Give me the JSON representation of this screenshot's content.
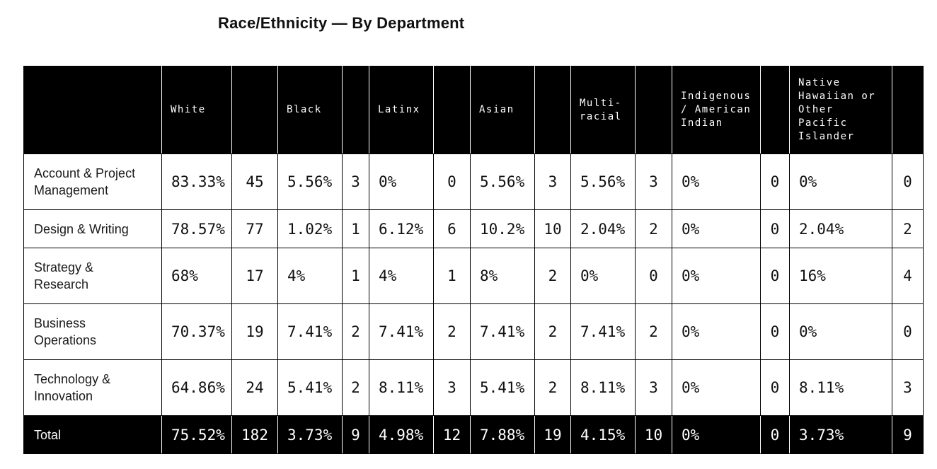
{
  "page_title": "Race/Ethnicity — By Department",
  "colors": {
    "header_bg": "#000000",
    "header_text": "#ffffff",
    "body_bg": "#ffffff",
    "body_text": "#111111",
    "grid_line": "#000000",
    "header_divider": "#ffffff"
  },
  "chart_data": {
    "type": "table",
    "title": "Race/Ethnicity — By Department",
    "column_groups": [
      "White",
      "Black",
      "Latinx",
      "Asian",
      "Multi-\nracial",
      "Indigenous\n/ American\nIndian",
      "Native\nHawaiian or\nOther\nPacific\nIslander"
    ],
    "columns_per_group": [
      "percent",
      "count"
    ],
    "rows": [
      {
        "label": "Account & Project\nManagement",
        "cells": [
          "83.33%",
          "45",
          "5.56%",
          "3",
          "0%",
          "0",
          "5.56%",
          "3",
          "5.56%",
          "3",
          "0%",
          "0",
          "0%",
          "0"
        ]
      },
      {
        "label": "Design & Writing",
        "cells": [
          "78.57%",
          "77",
          "1.02%",
          "1",
          "6.12%",
          "6",
          "10.2%",
          "10",
          "2.04%",
          "2",
          "0%",
          "0",
          "2.04%",
          "2"
        ]
      },
      {
        "label": "Strategy &\nResearch",
        "cells": [
          "68%",
          "17",
          "4%",
          "1",
          "4%",
          "1",
          "8%",
          "2",
          "0%",
          "0",
          "0%",
          "0",
          "16%",
          "4"
        ]
      },
      {
        "label": "Business\nOperations",
        "cells": [
          "70.37%",
          "19",
          "7.41%",
          "2",
          "7.41%",
          "2",
          "7.41%",
          "2",
          "7.41%",
          "2",
          "0%",
          "0",
          "0%",
          "0"
        ]
      },
      {
        "label": "Technology &\nInnovation",
        "cells": [
          "64.86%",
          "24",
          "5.41%",
          "2",
          "8.11%",
          "3",
          "5.41%",
          "2",
          "8.11%",
          "3",
          "0%",
          "0",
          "8.11%",
          "3"
        ]
      }
    ],
    "total": {
      "label": "Total",
      "cells": [
        "75.52%",
        "182",
        "3.73%",
        "9",
        "4.98%",
        "12",
        "7.88%",
        "19",
        "4.15%",
        "10",
        "0%",
        "0",
        "3.73%",
        "9"
      ]
    }
  }
}
